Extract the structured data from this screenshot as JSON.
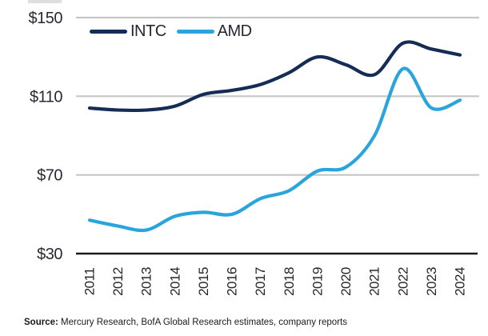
{
  "colors": {
    "intc_line": "#142c56",
    "amd_line": "#29a4dd",
    "gridline": "#c6c6c6",
    "axis_line": "#1a1a1a",
    "tick_text": "#26262a",
    "background": "#ffffff"
  },
  "legend": {
    "items": [
      {
        "label": "INTC",
        "color": "#142c56"
      },
      {
        "label": "AMD",
        "color": "#29a4dd"
      }
    ]
  },
  "source": {
    "label": "Source:",
    "text": " Mercury Research, BofA Global Research estimates, company reports"
  },
  "chart_data": {
    "type": "line",
    "title": "",
    "xlabel": "",
    "ylabel": "",
    "x": [
      "2011",
      "2012",
      "2013",
      "2014",
      "2015",
      "2016",
      "2017",
      "2018",
      "2019",
      "2020",
      "2021",
      "2022",
      "2023",
      "2024"
    ],
    "series": [
      {
        "name": "INTC",
        "color": "#142c56",
        "values": [
          104,
          103,
          103,
          105,
          111,
          113,
          116,
          122,
          130,
          126,
          121,
          137,
          134,
          131
        ]
      },
      {
        "name": "AMD",
        "color": "#29a4dd",
        "values": [
          47,
          44,
          42,
          49,
          51,
          50,
          58,
          62,
          72,
          74,
          90,
          124,
          104,
          108
        ]
      }
    ],
    "y_tick_labels": [
      "$150",
      "$110",
      "$70",
      "$30"
    ],
    "y_tick_values": [
      150,
      110,
      70,
      30
    ],
    "ylim": [
      30,
      150
    ],
    "grid": "horizontal-only",
    "legend_position": "top-left",
    "x_tick_rotation_deg": -90
  }
}
